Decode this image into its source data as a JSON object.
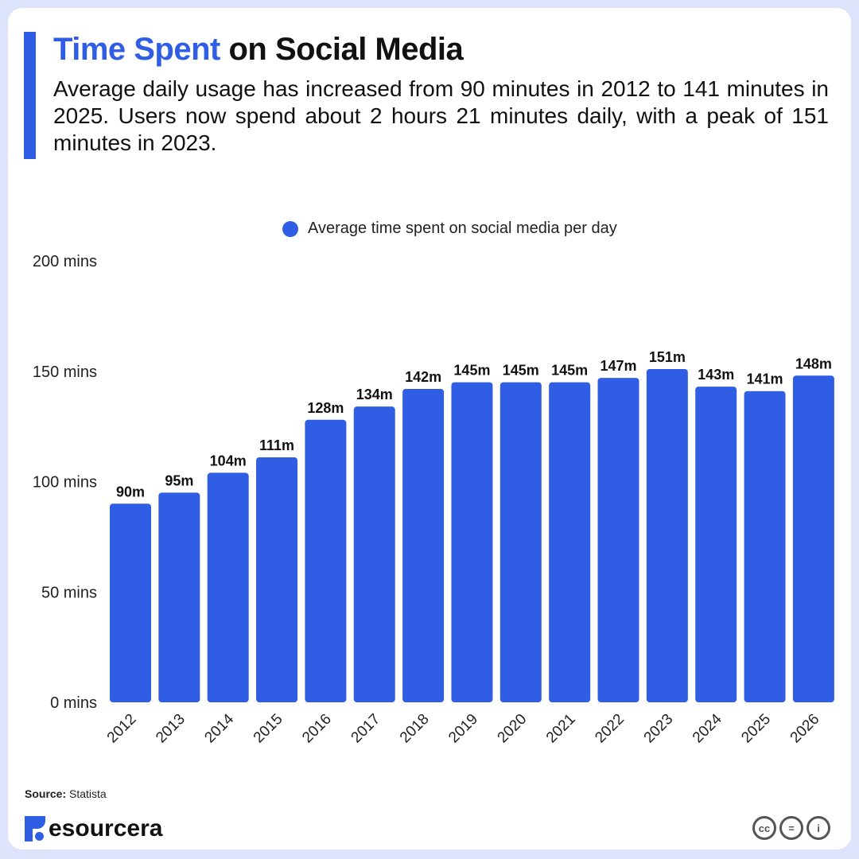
{
  "header": {
    "title_highlight": "Time Spent",
    "title_rest": "on Social Media",
    "subtitle": "Average daily usage has increased from 90 minutes in 2012 to 141 minutes in 2025. Users now spend about 2 hours 21 minutes daily, with a peak of 151 minutes in 2023."
  },
  "colors": {
    "accent": "#2f5de4",
    "bar": "#2f5de4"
  },
  "chart_data": {
    "type": "bar",
    "categories": [
      "2012",
      "2013",
      "2014",
      "2015",
      "2016",
      "2017",
      "2018",
      "2019",
      "2020",
      "2021",
      "2022",
      "2023",
      "2024",
      "2025",
      "2026"
    ],
    "series": [
      {
        "name": "Average time spent on social media per day",
        "values": [
          90,
          95,
          104,
          111,
          128,
          134,
          142,
          145,
          145,
          145,
          147,
          151,
          143,
          141,
          148
        ]
      }
    ],
    "data_labels": [
      "90m",
      "95m",
      "104m",
      "111m",
      "128m",
      "134m",
      "142m",
      "145m",
      "145m",
      "145m",
      "147m",
      "151m",
      "143m",
      "141m",
      "148m"
    ],
    "yticks": [
      0,
      50,
      100,
      150,
      200
    ],
    "ytick_labels": [
      "0 mins",
      "50 mins",
      "100 mins",
      "150 mins",
      "200 mins"
    ],
    "ylim": [
      0,
      200
    ],
    "grid": false,
    "legend_position": "top-center"
  },
  "footer": {
    "source_label": "Source:",
    "source_value": "Statista",
    "brand": "esourcera",
    "license_icons": [
      "cc-icon",
      "equals-icon",
      "attribution-icon"
    ],
    "license_text": [
      "cc",
      "=",
      "i"
    ]
  }
}
